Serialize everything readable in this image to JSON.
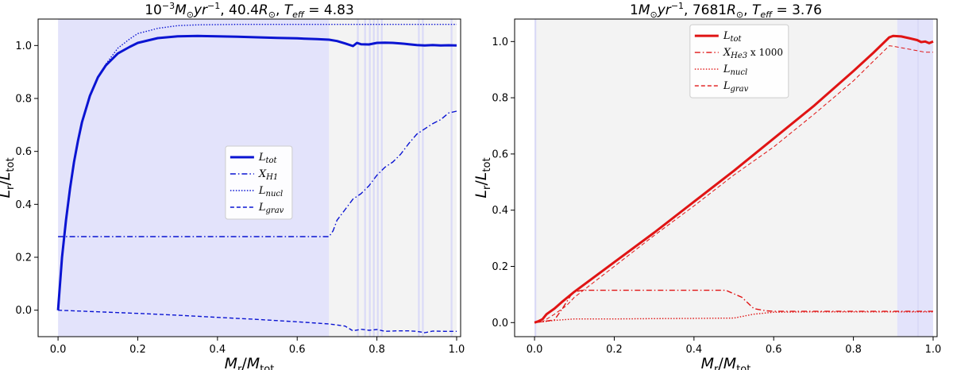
{
  "chart_data": [
    {
      "type": "line",
      "title": "10^{-3}M_{⊙}yr^{-1}, 40.4R_{⊙}, T_{eff}=4.83",
      "title_parts": {
        "a": "10",
        "a_sup": "−3",
        "b": "M",
        "b_sub": "⊙",
        "c": "yr",
        "c_sup": "−1",
        "d": ", 40.4",
        "e": "R",
        "e_sub": "⊙",
        "f": ", ",
        "g": "T",
        "g_sub": "eff",
        "h": " = 4.83"
      },
      "xlabel": {
        "main": "M",
        "sub": "r",
        "slash": "/",
        "main2": "M",
        "sub2": "tot"
      },
      "ylabel": {
        "main": "L",
        "sub": "r",
        "slash": "/",
        "main2": "L",
        "sub2": "tot"
      },
      "xlim": [
        -0.05,
        1.01
      ],
      "ylim": [
        -0.1,
        1.1
      ],
      "xticks": [
        "0.0",
        "0.2",
        "0.4",
        "0.6",
        "0.8",
        "1.0"
      ],
      "yticks": [
        "0.0",
        "0.2",
        "0.4",
        "0.6",
        "0.8",
        "1.0"
      ],
      "xtick_values": [
        0.0,
        0.2,
        0.4,
        0.6,
        0.8,
        1.0
      ],
      "ytick_values": [
        0.0,
        0.2,
        0.4,
        0.6,
        0.8,
        1.0
      ],
      "color": "#0a14d2",
      "background_zones": [
        {
          "from": 0.0,
          "to": 0.68,
          "color": "#e3e3fb"
        },
        {
          "from": 0.68,
          "to": 1.0,
          "color": "#f3f3f3"
        }
      ],
      "thin_bands": [
        0.752,
        0.77,
        0.782,
        0.792,
        0.802,
        0.812,
        0.905,
        0.915,
        0.987
      ],
      "legend_position": "center",
      "legend": [
        {
          "label": "L",
          "sub": "tot",
          "style": "solid"
        },
        {
          "label": "X",
          "sub": "H1",
          "style": "dashdot"
        },
        {
          "label": "L",
          "sub": "nucl",
          "style": "dotted"
        },
        {
          "label": "L",
          "sub": "grav",
          "style": "dashed"
        }
      ],
      "series": [
        {
          "style": "solid",
          "width": 3,
          "x": [
            0.0,
            0.005,
            0.01,
            0.02,
            0.03,
            0.04,
            0.05,
            0.06,
            0.08,
            0.1,
            0.12,
            0.15,
            0.18,
            0.2,
            0.25,
            0.3,
            0.35,
            0.4,
            0.45,
            0.5,
            0.55,
            0.6,
            0.65,
            0.68,
            0.7,
            0.72,
            0.74,
            0.75,
            0.76,
            0.78,
            0.8,
            0.82,
            0.84,
            0.86,
            0.88,
            0.9,
            0.92,
            0.94,
            0.96,
            0.98,
            1.0
          ],
          "y": [
            0.0,
            0.1,
            0.2,
            0.34,
            0.46,
            0.56,
            0.64,
            0.71,
            0.81,
            0.88,
            0.925,
            0.97,
            0.995,
            1.01,
            1.028,
            1.035,
            1.036,
            1.035,
            1.033,
            1.031,
            1.029,
            1.027,
            1.024,
            1.022,
            1.017,
            1.008,
            0.998,
            1.01,
            1.005,
            1.004,
            1.01,
            1.011,
            1.01,
            1.008,
            1.005,
            1.002,
            1.0,
            1.002,
            1.0,
            1.001,
            1.0
          ]
        },
        {
          "style": "dashdot",
          "width": 1.4,
          "x": [
            0.0,
            0.68,
            0.69,
            0.7,
            0.72,
            0.74,
            0.75,
            0.76,
            0.78,
            0.8,
            0.82,
            0.84,
            0.86,
            0.88,
            0.9,
            0.92,
            0.94,
            0.96,
            0.98,
            1.0
          ],
          "y": [
            0.278,
            0.278,
            0.3,
            0.34,
            0.38,
            0.42,
            0.43,
            0.44,
            0.47,
            0.51,
            0.54,
            0.56,
            0.59,
            0.63,
            0.665,
            0.685,
            0.705,
            0.72,
            0.745,
            0.752
          ]
        },
        {
          "style": "dotted",
          "width": 1.4,
          "x": [
            0.0,
            0.005,
            0.01,
            0.02,
            0.03,
            0.04,
            0.05,
            0.06,
            0.08,
            0.1,
            0.12,
            0.15,
            0.18,
            0.2,
            0.25,
            0.3,
            0.35,
            0.4,
            0.45,
            0.5,
            0.6,
            0.7,
            0.8,
            0.9,
            1.0
          ],
          "y": [
            0.0,
            0.1,
            0.2,
            0.34,
            0.46,
            0.56,
            0.64,
            0.71,
            0.81,
            0.88,
            0.93,
            0.99,
            1.025,
            1.045,
            1.065,
            1.075,
            1.078,
            1.079,
            1.08,
            1.08,
            1.08,
            1.08,
            1.08,
            1.08,
            1.08
          ]
        },
        {
          "style": "dashed",
          "width": 1.4,
          "x": [
            0.0,
            0.1,
            0.2,
            0.3,
            0.4,
            0.5,
            0.6,
            0.68,
            0.72,
            0.74,
            0.76,
            0.78,
            0.8,
            0.82,
            0.85,
            0.88,
            0.9,
            0.92,
            0.94,
            0.97,
            1.0
          ],
          "y": [
            0.0,
            -0.006,
            -0.012,
            -0.019,
            -0.027,
            -0.035,
            -0.044,
            -0.052,
            -0.06,
            -0.078,
            -0.072,
            -0.076,
            -0.073,
            -0.08,
            -0.078,
            -0.078,
            -0.08,
            -0.085,
            -0.079,
            -0.08,
            -0.08
          ]
        }
      ]
    },
    {
      "type": "line",
      "title": "1M_{⊙}yr^{-1}, 7681R_{⊙}, T_{eff}=3.76",
      "title_parts": {
        "a": "1",
        "a_sup": "",
        "b": "M",
        "b_sub": "⊙",
        "c": "yr",
        "c_sup": "−1",
        "d": ", 7681",
        "e": "R",
        "e_sub": "⊙",
        "f": ", ",
        "g": "T",
        "g_sub": "eff",
        "h": " = 3.76"
      },
      "xlabel": {
        "main": "M",
        "sub": "r",
        "slash": "/",
        "main2": "M",
        "sub2": "tot"
      },
      "ylabel": {
        "main": "L",
        "sub": "r",
        "slash": "/",
        "main2": "L",
        "sub2": "tot"
      },
      "xlim": [
        -0.05,
        1.01
      ],
      "ylim": [
        -0.05,
        1.08
      ],
      "xticks": [
        "0.0",
        "0.2",
        "0.4",
        "0.6",
        "0.8",
        "1.0"
      ],
      "yticks": [
        "0.0",
        "0.2",
        "0.4",
        "0.6",
        "0.8",
        "1.0"
      ],
      "xtick_values": [
        0.0,
        0.2,
        0.4,
        0.6,
        0.8,
        1.0
      ],
      "ytick_values": [
        0.0,
        0.2,
        0.4,
        0.6,
        0.8,
        1.0
      ],
      "color": "#e01414",
      "background_zones": [
        {
          "from": 0.0,
          "to": 0.91,
          "color": "#f3f3f3"
        },
        {
          "from": 0.91,
          "to": 1.0,
          "color": "#e3e3fb"
        }
      ],
      "thin_bands": [
        0.002,
        0.962
      ],
      "legend_position": "top-center",
      "legend": [
        {
          "label": "L",
          "sub": "tot",
          "style": "solid"
        },
        {
          "label": "X",
          "sub": "He3",
          "extra": " x 1000",
          "style": "dashdot"
        },
        {
          "label": "L",
          "sub": "nucl",
          "style": "dotted"
        },
        {
          "label": "L",
          "sub": "grav",
          "style": "dashed"
        }
      ],
      "series": [
        {
          "style": "solid",
          "width": 3,
          "x": [
            0.0,
            0.01,
            0.02,
            0.03,
            0.05,
            0.07,
            0.1,
            0.2,
            0.3,
            0.4,
            0.5,
            0.6,
            0.7,
            0.8,
            0.85,
            0.89,
            0.9,
            0.92,
            0.94,
            0.96,
            0.97,
            0.98,
            0.99,
            1.0
          ],
          "y": [
            0.0,
            0.005,
            0.012,
            0.03,
            0.05,
            0.075,
            0.11,
            0.215,
            0.32,
            0.43,
            0.54,
            0.655,
            0.77,
            0.895,
            0.96,
            1.015,
            1.02,
            1.018,
            1.012,
            1.005,
            0.998,
            1.0,
            0.994,
            1.0
          ]
        },
        {
          "style": "dashdot",
          "width": 1.4,
          "x": [
            0.0,
            0.02,
            0.05,
            0.07,
            0.09,
            0.1,
            0.12,
            0.2,
            0.3,
            0.4,
            0.48,
            0.52,
            0.55,
            0.58,
            0.6,
            0.7,
            0.8,
            0.9,
            1.0
          ],
          "y": [
            0.0,
            0.003,
            0.01,
            0.05,
            0.095,
            0.11,
            0.115,
            0.115,
            0.115,
            0.115,
            0.115,
            0.09,
            0.05,
            0.042,
            0.04,
            0.04,
            0.04,
            0.04,
            0.04
          ]
        },
        {
          "style": "dotted",
          "width": 1.4,
          "x": [
            0.0,
            0.05,
            0.1,
            0.2,
            0.3,
            0.4,
            0.5,
            0.55,
            0.6,
            0.7,
            0.8,
            0.9,
            1.0
          ],
          "y": [
            0.0,
            0.008,
            0.013,
            0.013,
            0.014,
            0.015,
            0.016,
            0.03,
            0.037,
            0.038,
            0.038,
            0.038,
            0.038
          ]
        },
        {
          "style": "dashed",
          "width": 1.0,
          "x": [
            0.0,
            0.02,
            0.05,
            0.08,
            0.1,
            0.2,
            0.3,
            0.4,
            0.5,
            0.6,
            0.7,
            0.8,
            0.85,
            0.89,
            0.9,
            0.92,
            0.95,
            0.98,
            1.0
          ],
          "y": [
            0.0,
            0.003,
            0.03,
            0.06,
            0.09,
            0.2,
            0.31,
            0.415,
            0.525,
            0.625,
            0.74,
            0.86,
            0.93,
            0.985,
            0.983,
            0.978,
            0.97,
            0.962,
            0.962
          ]
        }
      ]
    }
  ]
}
